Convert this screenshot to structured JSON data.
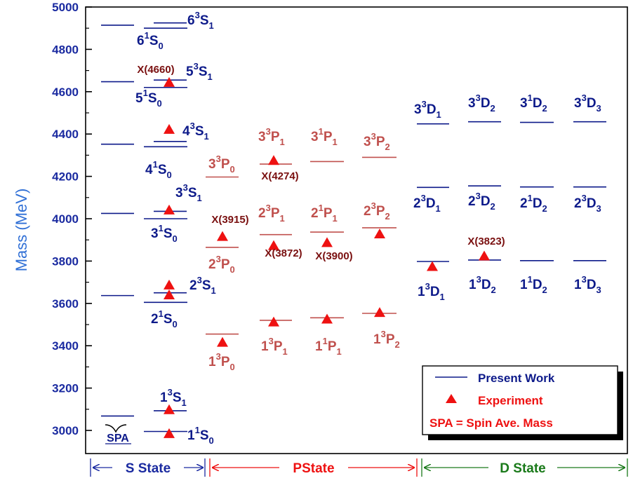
{
  "colors": {
    "s_state": "#0d1a8a",
    "p_state": "#c0504d",
    "d_state": "#0d1a8a",
    "experiment": "#ee1111",
    "exp_label": "#7a1010",
    "axis_title": "#2f6fd6",
    "legend_present": "#0d1a8a",
    "legend_exp": "#ee1111",
    "legend_spa": "#ee1111",
    "s_band": "#1a2aa0",
    "p_band": "#ee1111",
    "d_band": "#1a7a1a"
  },
  "chart_data": {
    "type": "scatter",
    "ylabel": "Mass  (MeV)",
    "ylim": [
      2950,
      5000
    ],
    "yticks": [
      "3000",
      "3200",
      "3400",
      "3600",
      "3800",
      "4000",
      "4200",
      "4400",
      "4600",
      "4800",
      "5000"
    ],
    "spa_levels": [
      3068,
      3637,
      4025,
      4352,
      4647,
      4914
    ],
    "spa_label": "SPA",
    "levels": [
      {
        "n": "1",
        "S": "1",
        "L": "S",
        "J": "0",
        "mass": 2995,
        "group": "s"
      },
      {
        "n": "1",
        "S": "3",
        "L": "S",
        "J": "1",
        "mass": 3093,
        "group": "s"
      },
      {
        "n": "2",
        "S": "1",
        "L": "S",
        "J": "0",
        "mass": 3605,
        "group": "s"
      },
      {
        "n": "2",
        "S": "3",
        "L": "S",
        "J": "1",
        "mass": 3650,
        "group": "s"
      },
      {
        "n": "3",
        "S": "1",
        "L": "S",
        "J": "0",
        "mass": 4000,
        "group": "s"
      },
      {
        "n": "3",
        "S": "3",
        "L": "S",
        "J": "1",
        "mass": 4035,
        "group": "s"
      },
      {
        "n": "4",
        "S": "1",
        "L": "S",
        "J": "0",
        "mass": 4340,
        "group": "s"
      },
      {
        "n": "4",
        "S": "3",
        "L": "S",
        "J": "1",
        "mass": 4365,
        "group": "s"
      },
      {
        "n": "5",
        "S": "1",
        "L": "S",
        "J": "0",
        "mass": 4620,
        "group": "s"
      },
      {
        "n": "5",
        "S": "3",
        "L": "S",
        "J": "1",
        "mass": 4655,
        "group": "s"
      },
      {
        "n": "6",
        "S": "1",
        "L": "S",
        "J": "0",
        "mass": 4900,
        "group": "s"
      },
      {
        "n": "6",
        "S": "3",
        "L": "S",
        "J": "1",
        "mass": 4925,
        "group": "s"
      },
      {
        "n": "1",
        "S": "3",
        "L": "P",
        "J": "0",
        "mass": 3455,
        "group": "p"
      },
      {
        "n": "2",
        "S": "3",
        "L": "P",
        "J": "0",
        "mass": 3865,
        "group": "p"
      },
      {
        "n": "3",
        "S": "3",
        "L": "P",
        "J": "0",
        "mass": 4197,
        "group": "p"
      },
      {
        "n": "1",
        "S": "3",
        "L": "P",
        "J": "1",
        "mass": 3520,
        "group": "p"
      },
      {
        "n": "2",
        "S": "3",
        "L": "P",
        "J": "1",
        "mass": 3925,
        "group": "p"
      },
      {
        "n": "3",
        "S": "3",
        "L": "P",
        "J": "1",
        "mass": 4258,
        "group": "p"
      },
      {
        "n": "1",
        "S": "1",
        "L": "P",
        "J": "1",
        "mass": 3532,
        "group": "p"
      },
      {
        "n": "2",
        "S": "1",
        "L": "P",
        "J": "1",
        "mass": 3937,
        "group": "p"
      },
      {
        "n": "3",
        "S": "1",
        "L": "P",
        "J": "1",
        "mass": 4270,
        "group": "p"
      },
      {
        "n": "1",
        "S": "3",
        "L": "P",
        "J": "2",
        "mass": 3553,
        "group": "p"
      },
      {
        "n": "2",
        "S": "3",
        "L": "P",
        "J": "2",
        "mass": 3957,
        "group": "p"
      },
      {
        "n": "3",
        "S": "3",
        "L": "P",
        "J": "2",
        "mass": 4290,
        "group": "p"
      },
      {
        "n": "1",
        "S": "3",
        "L": "D",
        "J": "1",
        "mass": 3798,
        "group": "d"
      },
      {
        "n": "2",
        "S": "3",
        "L": "D",
        "J": "1",
        "mass": 4148,
        "group": "d"
      },
      {
        "n": "3",
        "S": "3",
        "L": "D",
        "J": "1",
        "mass": 4448,
        "group": "d"
      },
      {
        "n": "1",
        "S": "3",
        "L": "D",
        "J": "2",
        "mass": 3805,
        "group": "d"
      },
      {
        "n": "2",
        "S": "3",
        "L": "D",
        "J": "2",
        "mass": 4155,
        "group": "d"
      },
      {
        "n": "3",
        "S": "3",
        "L": "D",
        "J": "2",
        "mass": 4458,
        "group": "d"
      },
      {
        "n": "1",
        "S": "1",
        "L": "D",
        "J": "2",
        "mass": 3802,
        "group": "d"
      },
      {
        "n": "2",
        "S": "1",
        "L": "D",
        "J": "2",
        "mass": 4150,
        "group": "d"
      },
      {
        "n": "3",
        "S": "1",
        "L": "D",
        "J": "2",
        "mass": 4455,
        "group": "d"
      },
      {
        "n": "1",
        "S": "3",
        "L": "D",
        "J": "3",
        "mass": 3802,
        "group": "d"
      },
      {
        "n": "2",
        "S": "3",
        "L": "D",
        "J": "3",
        "mass": 4150,
        "group": "d"
      },
      {
        "n": "3",
        "S": "3",
        "L": "D",
        "J": "3",
        "mass": 4458,
        "group": "d"
      }
    ],
    "experiment": [
      2984,
      3097,
      3639,
      3686,
      4040,
      4421,
      4643,
      3415,
      3915,
      3872,
      4274,
      3511,
      3525,
      3886,
      3556,
      3927,
      3773,
      3823
    ],
    "experiment_labels": [
      "X(4660)",
      "X(3915)",
      "X(3872)",
      "X(4274)",
      "X(3900)",
      "X(3823)"
    ],
    "legend": {
      "present": "Present Work",
      "experiment": "Experiment",
      "spa": "SPA = Spin Ave. Mass"
    },
    "state_bands": {
      "s": "S State",
      "p": "PState",
      "d": "D State"
    }
  }
}
